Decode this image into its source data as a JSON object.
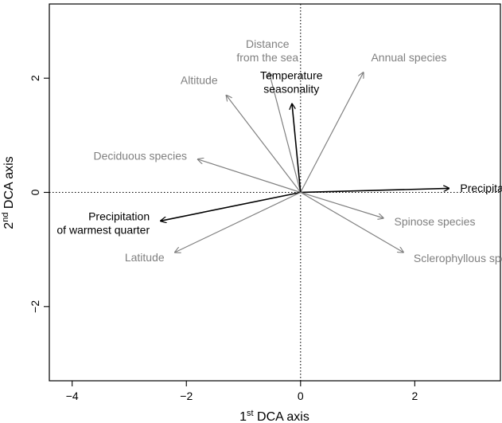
{
  "chart_data": {
    "type": "biplot",
    "xlabel": {
      "prefix": "1",
      "sup": "st",
      "suffix": " DCA axis"
    },
    "ylabel": {
      "prefix": "2",
      "sup": "nd",
      "suffix": " DCA axis"
    },
    "xlim": [
      -4.4,
      3.5
    ],
    "ylim": [
      -3.3,
      3.3
    ],
    "x_ticks": [
      -4,
      -2,
      0,
      2
    ],
    "x_tick_labels": [
      "−4",
      "−2",
      "0",
      "2"
    ],
    "y_ticks": [
      -2,
      0,
      2
    ],
    "y_tick_labels": [
      "−2",
      "0",
      "2"
    ],
    "zero_lines": true,
    "colors": {
      "primary": "#000000",
      "secondary": "#808080"
    },
    "vectors": [
      {
        "name": "Distance from the sea",
        "lines": [
          "Distance",
          "from the sea"
        ],
        "x": -0.55,
        "y": 2.1,
        "group": "secondary"
      },
      {
        "name": "Annual species",
        "lines": [
          "Annual species"
        ],
        "x": 1.1,
        "y": 2.1,
        "group": "secondary"
      },
      {
        "name": "Altitude",
        "lines": [
          "Altitude"
        ],
        "x": -1.3,
        "y": 1.7,
        "group": "secondary"
      },
      {
        "name": "Temperature seasonality",
        "lines": [
          "Temperature",
          "seasonality"
        ],
        "x": -0.15,
        "y": 1.55,
        "group": "primary"
      },
      {
        "name": "Deciduous species",
        "lines": [
          "Deciduous species"
        ],
        "x": -1.8,
        "y": 0.58,
        "group": "secondary"
      },
      {
        "name": "Precipitation seasonality",
        "lines": [
          "Precipitation seasonality"
        ],
        "x": 2.6,
        "y": 0.07,
        "group": "primary"
      },
      {
        "name": "Precipitation of warmest quarter",
        "lines": [
          "Precipitation",
          "of warmest quarter"
        ],
        "x": -2.45,
        "y": -0.5,
        "group": "primary"
      },
      {
        "name": "Spinose species",
        "lines": [
          "Spinose species"
        ],
        "x": 1.45,
        "y": -0.45,
        "group": "secondary"
      },
      {
        "name": "Latitude",
        "lines": [
          "Latitude"
        ],
        "x": -2.2,
        "y": -1.05,
        "group": "secondary"
      },
      {
        "name": "Sclerophyllous species",
        "lines": [
          "Sclerophyllous species"
        ],
        "x": 1.8,
        "y": -1.05,
        "group": "secondary"
      }
    ]
  }
}
